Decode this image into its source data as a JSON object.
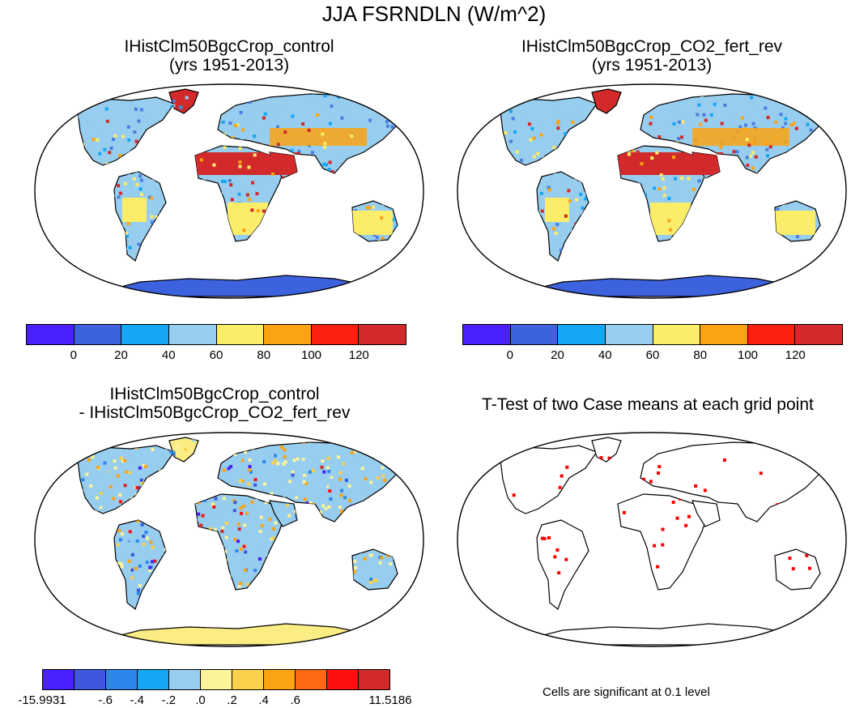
{
  "figure": {
    "main_title": "JJA FSRNDLN (W/m^2)",
    "panel_a": {
      "title_line1": "IHistClm50BgcCrop_control",
      "title_line2": "(yrs 1951-2013)"
    },
    "panel_b": {
      "title_line1": "IHistClm50BgcCrop_CO2_fert_rev",
      "title_line2": "(yrs 1951-2013)"
    },
    "panel_c": {
      "title_line1": "IHistClm50BgcCrop_control",
      "title_line2": "- IHistClm50BgcCrop_CO2_fert_rev"
    },
    "panel_d": {
      "title_line1": "T-Test of two Case means at each grid point",
      "footnote": "Cells are significant at 0.1 level"
    }
  },
  "colorbars": {
    "abs": {
      "colors": [
        "#4a20ff",
        "#3d62de",
        "#15a6f4",
        "#97cdee",
        "#fbec6a",
        "#fba312",
        "#fc2010",
        "#d22a2a"
      ],
      "labels": [
        "0",
        "20",
        "40",
        "60",
        "80",
        "100",
        "120"
      ]
    },
    "diff": {
      "colors": [
        "#4a20ff",
        "#3d58de",
        "#2d87ea",
        "#15a6f4",
        "#97cdee",
        "#fbf49a",
        "#fbd04b",
        "#fba312",
        "#fb6a12",
        "#fc1010",
        "#d22a2a"
      ],
      "labels": [
        "-15.9931",
        "-.6",
        "-.4",
        "-.2",
        ".0",
        ".2",
        ".4",
        ".6",
        "11.5186"
      ]
    }
  },
  "colors": {
    "land_mid": "#97cdee",
    "land_low": "#4a7fe0",
    "hot": "#d22a2a",
    "warm": "#fba312",
    "yellow": "#fbec6a",
    "antarctica_abs": "#3d62de",
    "antarctica_diff": "#fbec84",
    "signif": "#ff0000"
  }
}
